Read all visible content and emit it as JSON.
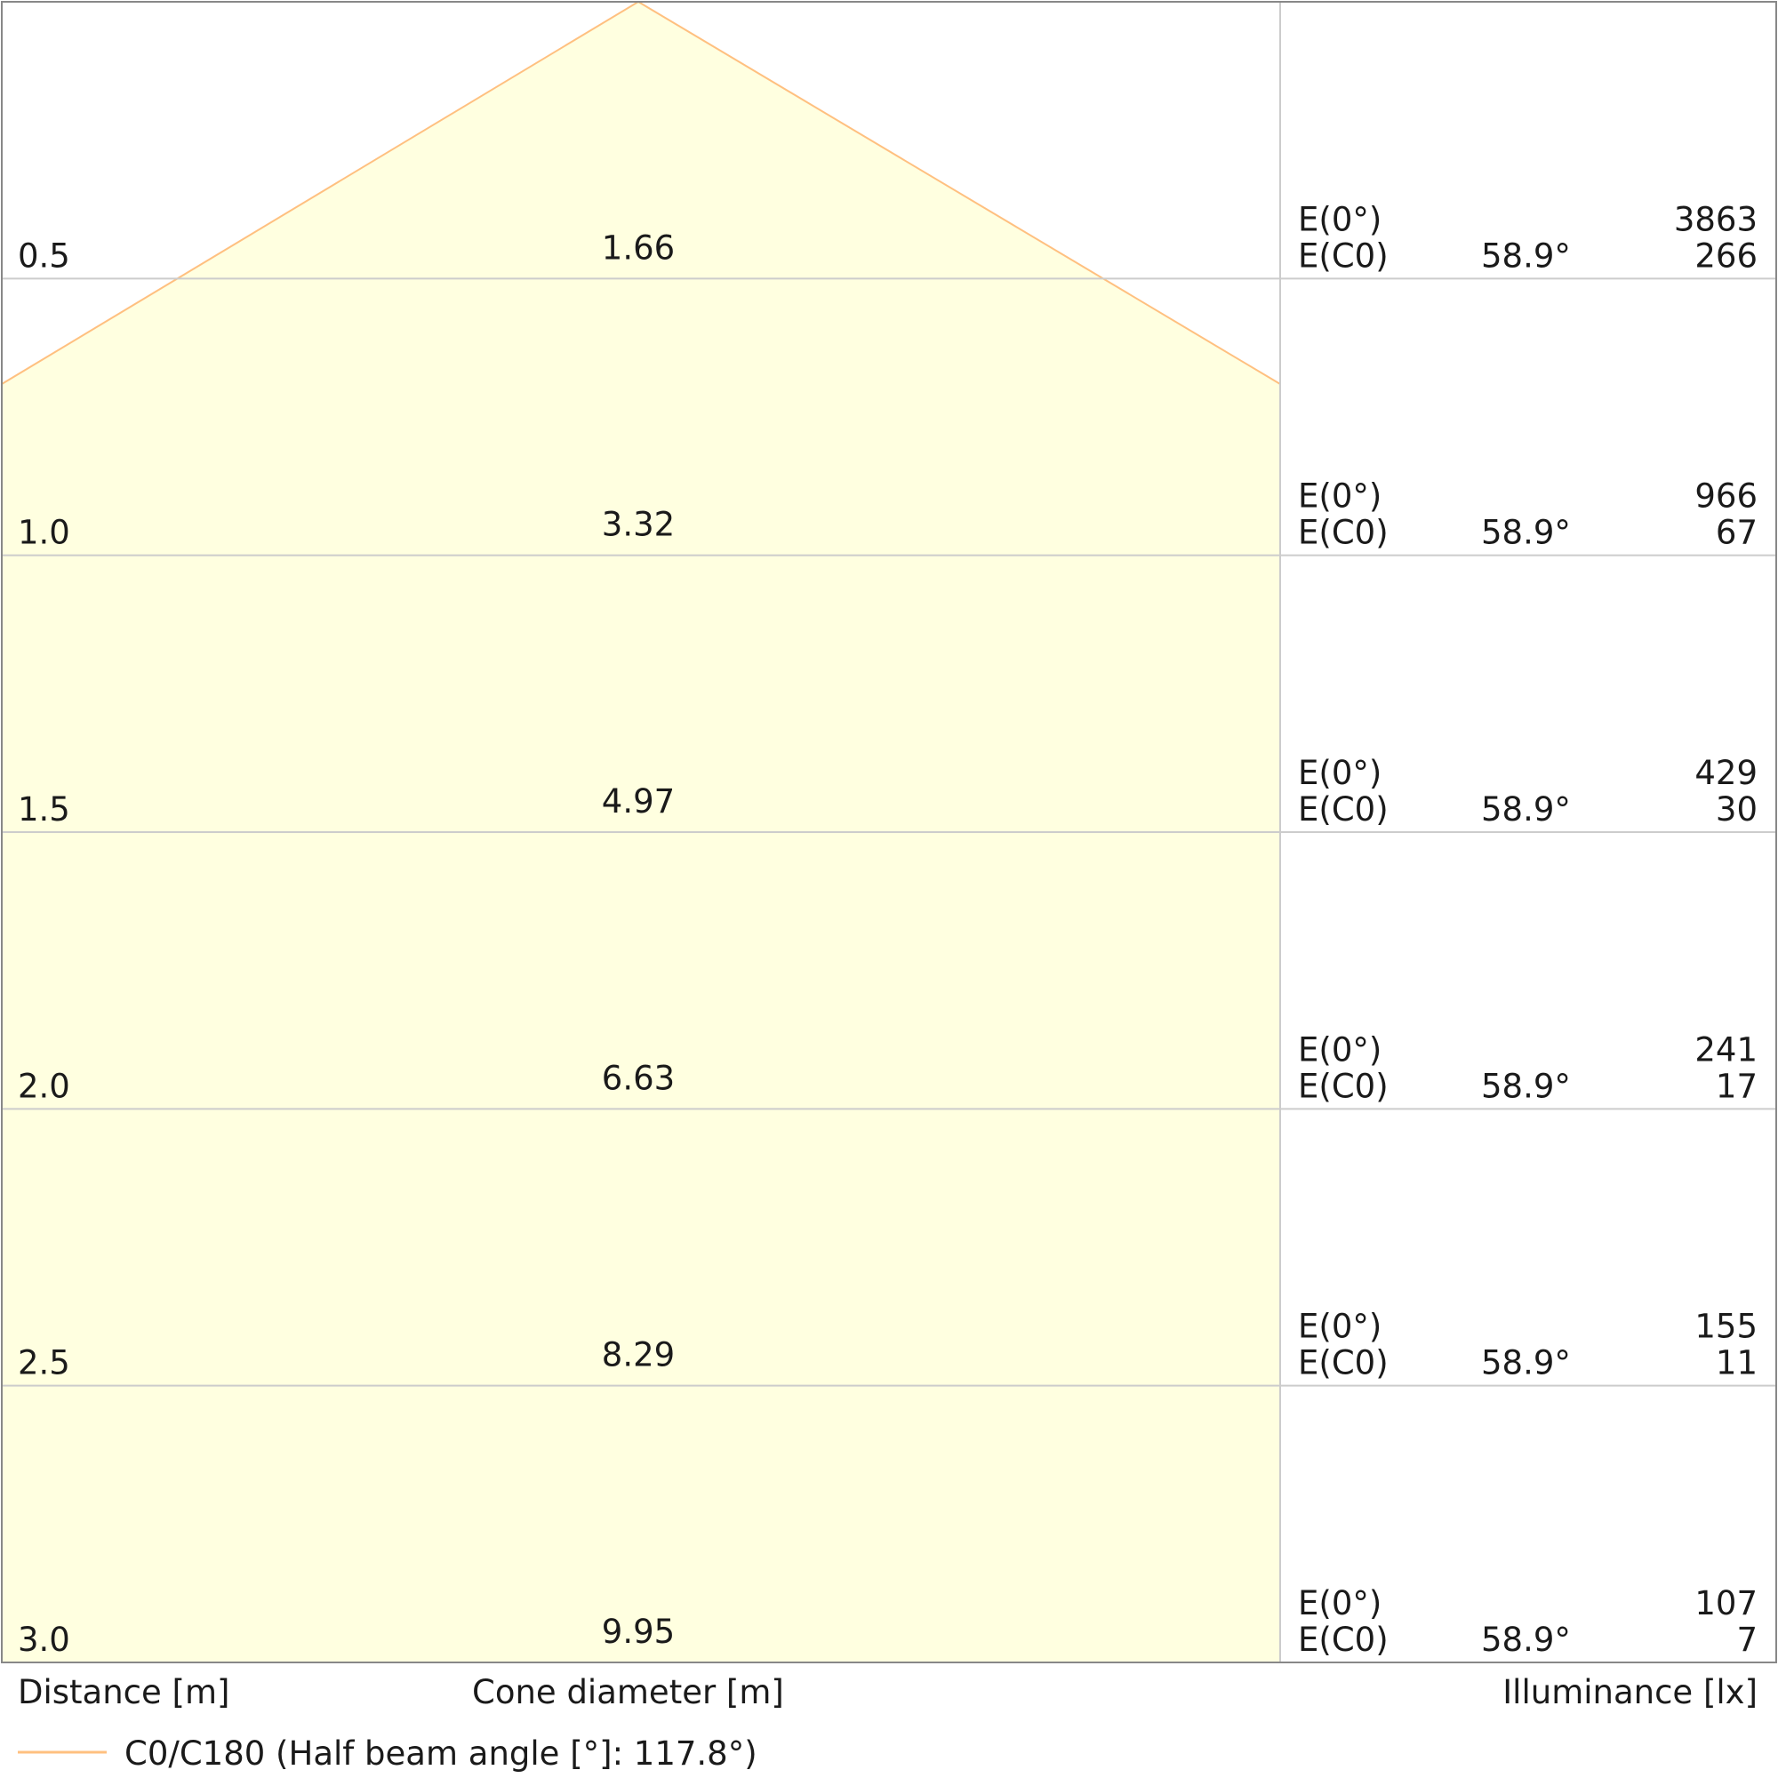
{
  "chart_data": {
    "type": "table",
    "chart_kind": "cone diagram",
    "legend": "C0/C180 (Half beam angle [°]: 117.8°)",
    "xlabel_left": "Distance [m]",
    "xlabel_center": "Cone diameter [m]",
    "xlabel_right": "Illuminance [lx]",
    "e0_label": "E(0°)",
    "ec0_label": "E(C0)",
    "half_beam_angle": 117.8,
    "rows": [
      {
        "distance": "0.5",
        "diameter": "1.66",
        "angle": "58.9°",
        "e0": "3863",
        "ec0": "266"
      },
      {
        "distance": "1.0",
        "diameter": "3.32",
        "angle": "58.9°",
        "e0": "966",
        "ec0": "67"
      },
      {
        "distance": "1.5",
        "diameter": "4.97",
        "angle": "58.9°",
        "e0": "429",
        "ec0": "30"
      },
      {
        "distance": "2.0",
        "diameter": "6.63",
        "angle": "58.9°",
        "e0": "241",
        "ec0": "17"
      },
      {
        "distance": "2.5",
        "diameter": "8.29",
        "angle": "58.9°",
        "e0": "155",
        "ec0": "11"
      },
      {
        "distance": "3.0",
        "diameter": "9.95",
        "angle": "58.9°",
        "e0": "107",
        "ec0": "7"
      }
    ],
    "colors": {
      "cone_fill": "#ffffe0",
      "cone_stroke": "#ffc080",
      "grid": "#cccccc"
    }
  }
}
